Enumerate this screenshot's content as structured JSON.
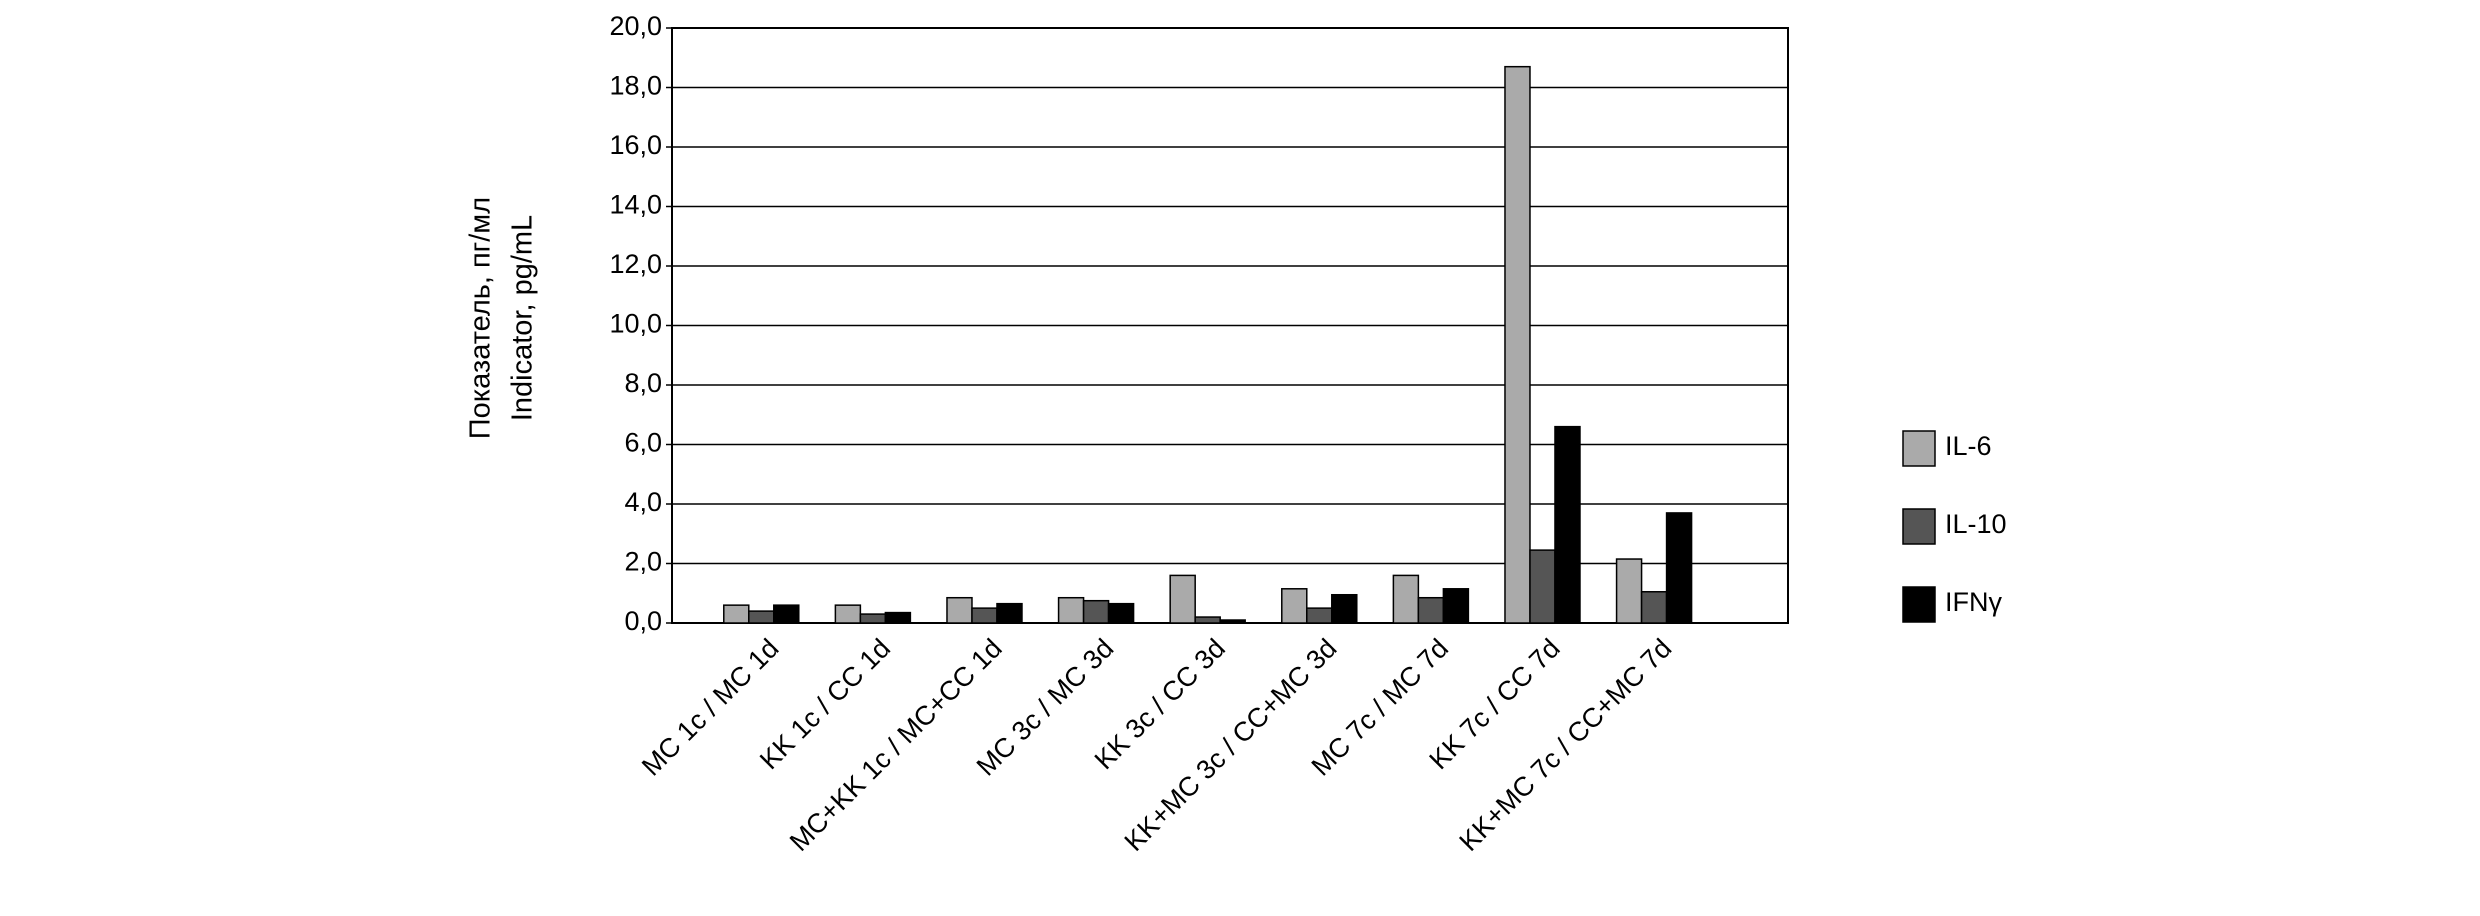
{
  "chart_data": {
    "type": "bar",
    "ylabel": [
      "Показатель, пг/мл",
      "Indicator, pg/mL"
    ],
    "categories": [
      "MC 1c / MC 1d",
      "KK 1c / CC 1d",
      "MC+KK 1c / MC+CC 1d",
      "MC 3c / MC 3d",
      "KK 3c / CC 3d",
      "KK+MC 3c / CC+MC 3d",
      "MC 7c / MC 7d",
      "KK 7c / CC 7d",
      "KK+MC 7c / CC+MC 7d"
    ],
    "series": [
      {
        "name": "IL-6",
        "color": "#aaaaaa",
        "values": [
          0.6,
          0.6,
          0.85,
          0.85,
          1.6,
          1.15,
          1.6,
          18.7,
          2.15
        ]
      },
      {
        "name": "IL-10",
        "color": "#555555",
        "values": [
          0.4,
          0.3,
          0.5,
          0.75,
          0.2,
          0.5,
          0.85,
          2.45,
          1.05
        ]
      },
      {
        "name": "IFNγ",
        "color": "#000000",
        "values": [
          0.6,
          0.35,
          0.65,
          0.65,
          0.1,
          0.95,
          1.15,
          6.6,
          3.7
        ]
      }
    ],
    "ylim": [
      0,
      20
    ],
    "yticks": [
      {
        "value": 0,
        "label": "0,0"
      },
      {
        "value": 2,
        "label": "2,0"
      },
      {
        "value": 4,
        "label": "4,0"
      },
      {
        "value": 6,
        "label": "6,0"
      },
      {
        "value": 8,
        "label": "8,0"
      },
      {
        "value": 10,
        "label": "10,0"
      },
      {
        "value": 12,
        "label": "12,0"
      },
      {
        "value": 14,
        "label": "14,0"
      },
      {
        "value": 16,
        "label": "16,0"
      },
      {
        "value": 18,
        "label": "18,0"
      },
      {
        "value": 20,
        "label": "20,0"
      }
    ],
    "grid": true,
    "legend": "right"
  }
}
